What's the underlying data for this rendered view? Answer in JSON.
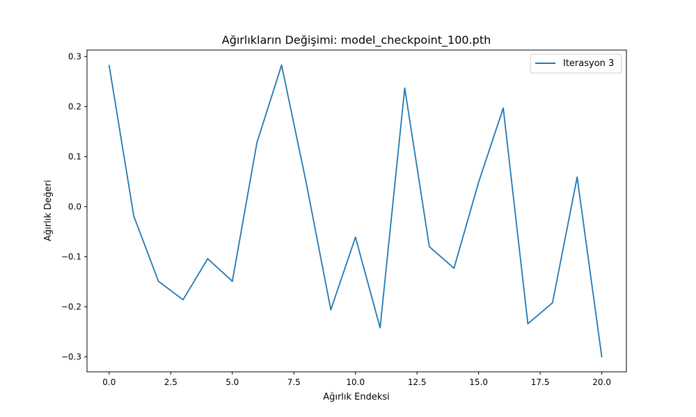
{
  "chart_data": {
    "type": "line",
    "title": "Ağırlıkların Değişimi: model_checkpoint_100.pth",
    "xlabel": "Ağırlık Endeksi",
    "ylabel": "Ağırlık Değeri",
    "xlim": [
      -0.9,
      21.0
    ],
    "ylim": [
      -0.33,
      0.313
    ],
    "xticks": [
      0.0,
      2.5,
      5.0,
      7.5,
      10.0,
      12.5,
      15.0,
      17.5,
      20.0
    ],
    "xtick_labels": [
      "0.0",
      "2.5",
      "5.0",
      "7.5",
      "10.0",
      "12.5",
      "15.0",
      "17.5",
      "20.0"
    ],
    "yticks": [
      -0.3,
      -0.2,
      -0.1,
      0.0,
      0.1,
      0.2,
      0.3
    ],
    "ytick_labels": [
      "−0.3",
      "−0.2",
      "−0.1",
      "0.0",
      "0.1",
      "0.2",
      "0.3"
    ],
    "grid": false,
    "legend_position": "top-right",
    "series": [
      {
        "name": "Iterasyon 3",
        "color": "#1f77b4",
        "x": [
          0,
          1,
          2,
          3,
          4,
          5,
          6,
          7,
          8,
          9,
          10,
          11,
          12,
          13,
          14,
          15,
          16,
          17,
          18,
          19,
          20
        ],
        "values": [
          0.282,
          -0.019,
          -0.149,
          -0.186,
          -0.104,
          -0.149,
          0.128,
          0.283,
          0.048,
          -0.206,
          -0.061,
          -0.242,
          0.237,
          -0.08,
          -0.123,
          0.049,
          0.197,
          -0.234,
          -0.192,
          0.059,
          -0.3
        ]
      }
    ]
  }
}
